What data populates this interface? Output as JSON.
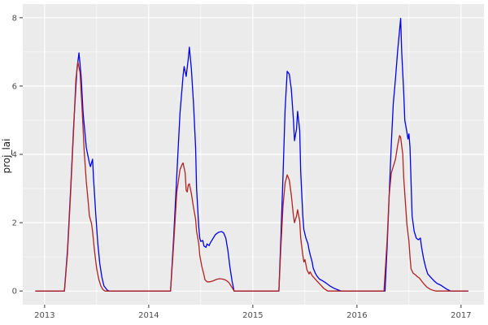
{
  "chart_data": {
    "type": "line",
    "title": "",
    "xlabel": "",
    "ylabel": "proj_lai",
    "x_ticks": [
      2013,
      2014,
      2015,
      2016,
      2017
    ],
    "x_tick_labels": [
      "2013",
      "2014",
      "2015",
      "2016",
      "2017"
    ],
    "y_ticks": [
      0,
      2,
      4,
      6,
      8
    ],
    "y_tick_labels": [
      "0",
      "2",
      "4",
      "6",
      "8"
    ],
    "x_minor_gridlines": [
      2013.5,
      2014.5,
      2015.5,
      2016.5
    ],
    "y_minor_gridlines": [
      1,
      3,
      5,
      7
    ],
    "xlim": [
      2012.79,
      2017.22
    ],
    "ylim": [
      -0.4,
      8.4
    ],
    "grid": "major-and-minor-white-on-grey-panel",
    "legend_position": "none",
    "series": [
      {
        "name": "blue-line",
        "color": "#0000EE",
        "points": [
          [
            2012.91,
            0
          ],
          [
            2013.19,
            0
          ],
          [
            2013.22,
            1.2
          ],
          [
            2013.25,
            3.0
          ],
          [
            2013.28,
            4.9
          ],
          [
            2013.31,
            6.5
          ],
          [
            2013.33,
            6.97
          ],
          [
            2013.35,
            6.3
          ],
          [
            2013.37,
            5.2
          ],
          [
            2013.4,
            4.2
          ],
          [
            2013.43,
            3.75
          ],
          [
            2013.44,
            3.64
          ],
          [
            2013.46,
            3.86
          ],
          [
            2013.47,
            3.3
          ],
          [
            2013.49,
            2.3
          ],
          [
            2013.51,
            1.4
          ],
          [
            2013.53,
            0.8
          ],
          [
            2013.55,
            0.4
          ],
          [
            2013.57,
            0.15
          ],
          [
            2013.6,
            0.03
          ],
          [
            2013.62,
            0
          ],
          [
            2014.21,
            0
          ],
          [
            2014.24,
            1.6
          ],
          [
            2014.27,
            3.4
          ],
          [
            2014.3,
            5.2
          ],
          [
            2014.33,
            6.3
          ],
          [
            2014.34,
            6.57
          ],
          [
            2014.36,
            6.28
          ],
          [
            2014.38,
            6.8
          ],
          [
            2014.39,
            7.14
          ],
          [
            2014.41,
            6.5
          ],
          [
            2014.43,
            5.5
          ],
          [
            2014.45,
            4.2
          ],
          [
            2014.46,
            3.0
          ],
          [
            2014.48,
            1.9
          ],
          [
            2014.49,
            1.55
          ],
          [
            2014.5,
            1.45
          ],
          [
            2014.52,
            1.48
          ],
          [
            2014.53,
            1.32
          ],
          [
            2014.55,
            1.28
          ],
          [
            2014.56,
            1.38
          ],
          [
            2014.58,
            1.33
          ],
          [
            2014.59,
            1.4
          ],
          [
            2014.62,
            1.55
          ],
          [
            2014.64,
            1.65
          ],
          [
            2014.67,
            1.72
          ],
          [
            2014.7,
            1.74
          ],
          [
            2014.72,
            1.7
          ],
          [
            2014.74,
            1.55
          ],
          [
            2014.76,
            1.2
          ],
          [
            2014.78,
            0.7
          ],
          [
            2014.8,
            0.3
          ],
          [
            2014.82,
            0
          ],
          [
            2015.25,
            0
          ],
          [
            2015.27,
            1.6
          ],
          [
            2015.29,
            3.4
          ],
          [
            2015.31,
            5.3
          ],
          [
            2015.33,
            6.43
          ],
          [
            2015.35,
            6.35
          ],
          [
            2015.37,
            5.9
          ],
          [
            2015.39,
            5.0
          ],
          [
            2015.4,
            4.4
          ],
          [
            2015.42,
            4.75
          ],
          [
            2015.43,
            5.26
          ],
          [
            2015.45,
            4.7
          ],
          [
            2015.46,
            3.5
          ],
          [
            2015.48,
            2.2
          ],
          [
            2015.49,
            1.8
          ],
          [
            2015.51,
            1.55
          ],
          [
            2015.53,
            1.38
          ],
          [
            2015.54,
            1.2
          ],
          [
            2015.55,
            1.07
          ],
          [
            2015.57,
            0.85
          ],
          [
            2015.58,
            0.67
          ],
          [
            2015.6,
            0.52
          ],
          [
            2015.62,
            0.42
          ],
          [
            2015.64,
            0.35
          ],
          [
            2015.67,
            0.3
          ],
          [
            2015.7,
            0.24
          ],
          [
            2015.74,
            0.15
          ],
          [
            2015.78,
            0.08
          ],
          [
            2015.82,
            0.03
          ],
          [
            2015.85,
            0
          ],
          [
            2016.27,
            0
          ],
          [
            2016.29,
            1.3
          ],
          [
            2016.31,
            2.8
          ],
          [
            2016.33,
            4.3
          ],
          [
            2016.35,
            5.5
          ],
          [
            2016.37,
            6.2
          ],
          [
            2016.39,
            7.0
          ],
          [
            2016.42,
            7.98
          ],
          [
            2016.43,
            7.0
          ],
          [
            2016.45,
            5.8
          ],
          [
            2016.46,
            5.0
          ],
          [
            2016.48,
            4.65
          ],
          [
            2016.49,
            4.45
          ],
          [
            2016.5,
            4.6
          ],
          [
            2016.51,
            4.2
          ],
          [
            2016.52,
            3.2
          ],
          [
            2016.53,
            2.2
          ],
          [
            2016.55,
            1.75
          ],
          [
            2016.57,
            1.55
          ],
          [
            2016.59,
            1.5
          ],
          [
            2016.61,
            1.55
          ],
          [
            2016.62,
            1.3
          ],
          [
            2016.64,
            0.95
          ],
          [
            2016.66,
            0.7
          ],
          [
            2016.68,
            0.5
          ],
          [
            2016.71,
            0.4
          ],
          [
            2016.74,
            0.3
          ],
          [
            2016.77,
            0.22
          ],
          [
            2016.8,
            0.18
          ],
          [
            2016.83,
            0.12
          ],
          [
            2016.86,
            0.06
          ],
          [
            2016.9,
            0
          ],
          [
            2017.07,
            0
          ]
        ]
      },
      {
        "name": "red-line",
        "color": "#B22222",
        "points": [
          [
            2012.91,
            0
          ],
          [
            2013.19,
            0
          ],
          [
            2013.22,
            1.1
          ],
          [
            2013.25,
            2.9
          ],
          [
            2013.28,
            4.8
          ],
          [
            2013.3,
            6.2
          ],
          [
            2013.32,
            6.7
          ],
          [
            2013.34,
            6.4
          ],
          [
            2013.36,
            5.3
          ],
          [
            2013.38,
            4.1
          ],
          [
            2013.4,
            3.2
          ],
          [
            2013.42,
            2.57
          ],
          [
            2013.43,
            2.2
          ],
          [
            2013.45,
            1.98
          ],
          [
            2013.46,
            1.75
          ],
          [
            2013.48,
            1.15
          ],
          [
            2013.5,
            0.65
          ],
          [
            2013.52,
            0.35
          ],
          [
            2013.54,
            0.15
          ],
          [
            2013.56,
            0.04
          ],
          [
            2013.58,
            0
          ],
          [
            2014.21,
            0
          ],
          [
            2014.24,
            1.4
          ],
          [
            2014.27,
            2.9
          ],
          [
            2014.3,
            3.55
          ],
          [
            2014.32,
            3.7
          ],
          [
            2014.33,
            3.75
          ],
          [
            2014.35,
            3.45
          ],
          [
            2014.36,
            2.95
          ],
          [
            2014.37,
            2.9
          ],
          [
            2014.38,
            3.1
          ],
          [
            2014.39,
            3.14
          ],
          [
            2014.41,
            2.85
          ],
          [
            2014.43,
            2.45
          ],
          [
            2014.45,
            2.1
          ],
          [
            2014.46,
            1.75
          ],
          [
            2014.48,
            1.4
          ],
          [
            2014.49,
            1.05
          ],
          [
            2014.51,
            0.72
          ],
          [
            2014.53,
            0.48
          ],
          [
            2014.54,
            0.33
          ],
          [
            2014.56,
            0.27
          ],
          [
            2014.59,
            0.27
          ],
          [
            2014.62,
            0.3
          ],
          [
            2014.65,
            0.34
          ],
          [
            2014.68,
            0.36
          ],
          [
            2014.71,
            0.35
          ],
          [
            2014.74,
            0.32
          ],
          [
            2014.77,
            0.25
          ],
          [
            2014.79,
            0.15
          ],
          [
            2014.81,
            0.06
          ],
          [
            2014.82,
            0
          ],
          [
            2015.25,
            0
          ],
          [
            2015.27,
            1.3
          ],
          [
            2015.29,
            2.5
          ],
          [
            2015.31,
            3.15
          ],
          [
            2015.33,
            3.4
          ],
          [
            2015.35,
            3.25
          ],
          [
            2015.37,
            2.8
          ],
          [
            2015.39,
            2.2
          ],
          [
            2015.4,
            2.0
          ],
          [
            2015.42,
            2.2
          ],
          [
            2015.43,
            2.38
          ],
          [
            2015.45,
            2.05
          ],
          [
            2015.46,
            1.55
          ],
          [
            2015.48,
            1.05
          ],
          [
            2015.49,
            0.85
          ],
          [
            2015.5,
            0.92
          ],
          [
            2015.52,
            0.62
          ],
          [
            2015.54,
            0.5
          ],
          [
            2015.55,
            0.56
          ],
          [
            2015.57,
            0.45
          ],
          [
            2015.59,
            0.38
          ],
          [
            2015.62,
            0.28
          ],
          [
            2015.65,
            0.18
          ],
          [
            2015.68,
            0.08
          ],
          [
            2015.72,
            0
          ],
          [
            2016.26,
            0
          ],
          [
            2016.29,
            1.5
          ],
          [
            2016.31,
            2.8
          ],
          [
            2016.33,
            3.45
          ],
          [
            2016.35,
            3.65
          ],
          [
            2016.37,
            3.85
          ],
          [
            2016.39,
            4.25
          ],
          [
            2016.41,
            4.55
          ],
          [
            2016.42,
            4.5
          ],
          [
            2016.44,
            4.0
          ],
          [
            2016.45,
            3.3
          ],
          [
            2016.47,
            2.4
          ],
          [
            2016.48,
            1.95
          ],
          [
            2016.5,
            1.45
          ],
          [
            2016.51,
            1.0
          ],
          [
            2016.52,
            0.65
          ],
          [
            2016.54,
            0.52
          ],
          [
            2016.56,
            0.48
          ],
          [
            2016.58,
            0.42
          ],
          [
            2016.6,
            0.38
          ],
          [
            2016.62,
            0.3
          ],
          [
            2016.64,
            0.22
          ],
          [
            2016.67,
            0.12
          ],
          [
            2016.7,
            0.06
          ],
          [
            2016.73,
            0.02
          ],
          [
            2016.76,
            0
          ],
          [
            2017.07,
            0
          ]
        ]
      }
    ]
  },
  "style": {
    "background": "#FFFFFF",
    "panel_bg": "#EBEBEB",
    "grid_color": "#FFFFFF",
    "tick_label_color": "#4D4D4D",
    "axis_title_color": "#1A1A1A",
    "tick_mark_color": "#333333"
  }
}
